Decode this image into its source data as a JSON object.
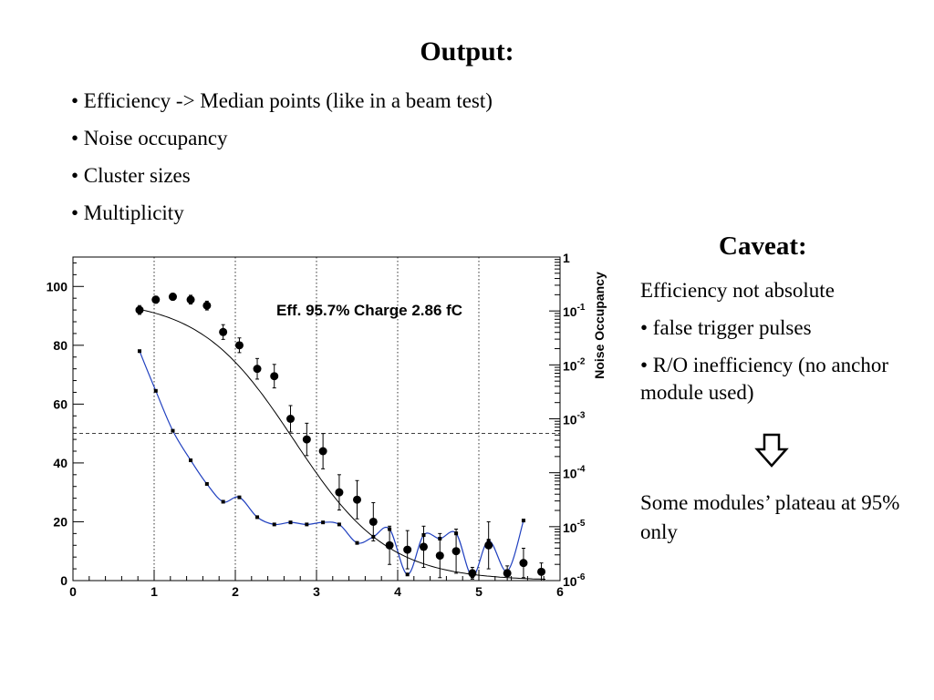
{
  "slide": {
    "title": "Output:",
    "bullets": [
      "• Efficiency -> Median points (like in a beam test)",
      "• Noise occupancy",
      "• Cluster sizes",
      "• Multiplicity"
    ],
    "caveat": {
      "title": "Caveat:",
      "intro": "Efficiency not absolute",
      "items": [
        "• false trigger pulses",
        "• R/O inefficiency (no anchor module used)"
      ],
      "conclusion": "Some modules’ plateau at 95% only"
    }
  },
  "colors": {
    "efficiency": "#000000",
    "noise": "#1f3fbf"
  },
  "chart_data": {
    "type": "scatter",
    "annotation": "Eff. 95.7%  Charge 2.86 fC",
    "xlim": [
      0,
      6
    ],
    "ylim": [
      0,
      110
    ],
    "y2label": "Noise Occupancy",
    "y2scale": "log",
    "y2lim": [
      1e-06,
      1
    ],
    "x_ticks": [
      "0",
      "1",
      "2",
      "3",
      "4",
      "5",
      "6"
    ],
    "y_ticks": [
      "0",
      "20",
      "40",
      "60",
      "80",
      "100"
    ],
    "y2_ticks": [
      {
        "base": "1",
        "exp": ""
      },
      {
        "base": "10",
        "exp": "-1"
      },
      {
        "base": "10",
        "exp": "-2"
      },
      {
        "base": "10",
        "exp": "-3"
      },
      {
        "base": "10",
        "exp": "-4"
      },
      {
        "base": "10",
        "exp": "-5"
      },
      {
        "base": "10",
        "exp": "-6"
      }
    ],
    "grid": "dotted vertical lines at integer x",
    "threshold_line": 50,
    "series": [
      {
        "axis": "left",
        "style": "markers with error bars",
        "x": [
          0.82,
          1.02,
          1.23,
          1.45,
          1.65,
          1.85,
          2.05,
          2.27,
          2.48,
          2.68,
          2.88,
          3.08,
          3.28,
          3.5,
          3.7,
          3.9,
          4.12,
          4.32,
          4.52,
          4.72,
          4.92,
          5.12,
          5.35,
          5.55,
          5.77
        ],
        "y": [
          92,
          95.5,
          96.5,
          95.5,
          93.5,
          84.5,
          80,
          72,
          69.5,
          55,
          48,
          44,
          30,
          27.5,
          20,
          12,
          10.5,
          11.5,
          8.5,
          10,
          2.5,
          12,
          2.5,
          6,
          3
        ],
        "err": [
          1.5,
          1.2,
          1.2,
          1.5,
          1.5,
          2.5,
          2.5,
          3.5,
          4,
          4.5,
          5.5,
          6,
          6,
          6.5,
          6.5,
          6.5,
          6.5,
          7,
          7.5,
          7.5,
          2,
          8,
          2.5,
          5,
          3
        ]
      },
      {
        "axis": "right",
        "style": "small squares joined by smooth line",
        "x": [
          0.82,
          1.02,
          1.23,
          1.45,
          1.65,
          1.85,
          2.05,
          2.27,
          2.48,
          2.68,
          2.88,
          3.08,
          3.28,
          3.5,
          3.7,
          3.9,
          4.12,
          4.32,
          4.52,
          4.72,
          4.92,
          5.12,
          5.35,
          5.55
        ],
        "y": [
          0.018,
          0.0033,
          0.0006,
          0.00017,
          6.2e-05,
          2.9e-05,
          3.5e-05,
          1.5e-05,
          1.1e-05,
          1.2e-05,
          1.1e-05,
          1.2e-05,
          1.1e-05,
          5e-06,
          6.5e-06,
          9e-06,
          1.3e-06,
          7e-06,
          6e-06,
          7.5e-06,
          1.2e-06,
          5.5e-06,
          1.5e-06,
          1.3e-05
        ]
      }
    ]
  }
}
